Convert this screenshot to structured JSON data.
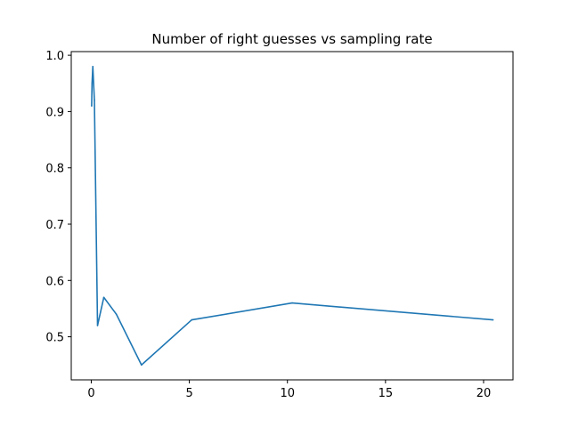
{
  "chart_data": {
    "type": "line",
    "title": "Number of right guesses vs sampling rate",
    "xlabel": "",
    "ylabel": "",
    "xlim": [
      -1.02,
      21.5
    ],
    "ylim": [
      0.4235,
      1.0065
    ],
    "xticks": [
      {
        "value": 0,
        "label": "0"
      },
      {
        "value": 5,
        "label": "5"
      },
      {
        "value": 10,
        "label": "10"
      },
      {
        "value": 15,
        "label": "15"
      },
      {
        "value": 20,
        "label": "20"
      }
    ],
    "yticks": [
      {
        "value": 0.5,
        "label": "0.5"
      },
      {
        "value": 0.6,
        "label": "0.6"
      },
      {
        "value": 0.7,
        "label": "0.7"
      },
      {
        "value": 0.8,
        "label": "0.8"
      },
      {
        "value": 0.9,
        "label": "0.9"
      },
      {
        "value": 1.0,
        "label": "1.0"
      }
    ],
    "grid": false,
    "series": [
      {
        "color": "#1f77b4",
        "x": [
          0.02,
          0.04,
          0.08,
          0.16,
          0.32,
          0.64,
          1.28,
          2.56,
          5.12,
          10.24,
          20.48
        ],
        "y": [
          0.91,
          0.95,
          0.98,
          0.92,
          0.52,
          0.57,
          0.54,
          0.45,
          0.53,
          0.56,
          0.53
        ]
      }
    ]
  }
}
